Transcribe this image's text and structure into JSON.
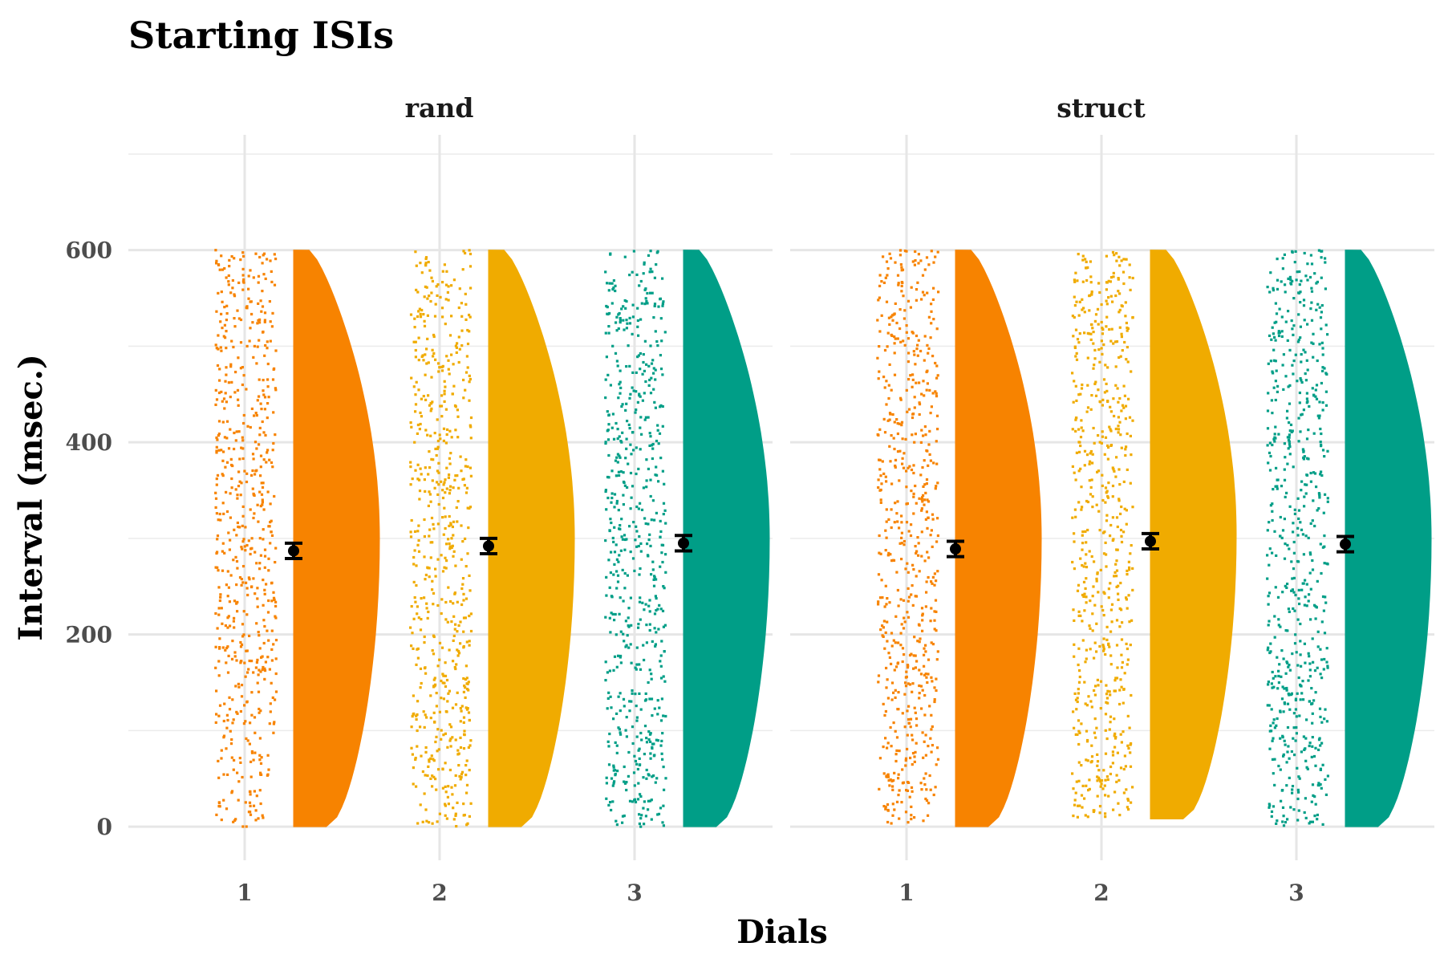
{
  "chart_data": {
    "type": "raincloud",
    "title": "Starting ISIs",
    "xlabel": "Dials",
    "ylabel": "Interval (msec.)",
    "ylim": [
      -35,
      720
    ],
    "y_ticks": [
      0,
      200,
      400,
      600
    ],
    "categories": [
      "1",
      "2",
      "3"
    ],
    "colors": {
      "1": "#F78300",
      "2": "#F0AB00",
      "3": "#009E87"
    },
    "grid": true,
    "legend": "none",
    "panels": [
      {
        "label": "rand",
        "series": [
          {
            "dial": "1",
            "mean": 287,
            "se": 8,
            "min": 0,
            "max": 600
          },
          {
            "dial": "2",
            "mean": 292,
            "se": 8,
            "min": 0,
            "max": 600
          },
          {
            "dial": "3",
            "mean": 295,
            "se": 8,
            "min": 0,
            "max": 600
          }
        ]
      },
      {
        "label": "struct",
        "series": [
          {
            "dial": "1",
            "mean": 289,
            "se": 8,
            "min": 0,
            "max": 600
          },
          {
            "dial": "2",
            "mean": 297,
            "se": 8,
            "min": 8,
            "max": 600
          },
          {
            "dial": "3",
            "mean": 294,
            "se": 8,
            "min": 0,
            "max": 600
          }
        ]
      }
    ]
  }
}
